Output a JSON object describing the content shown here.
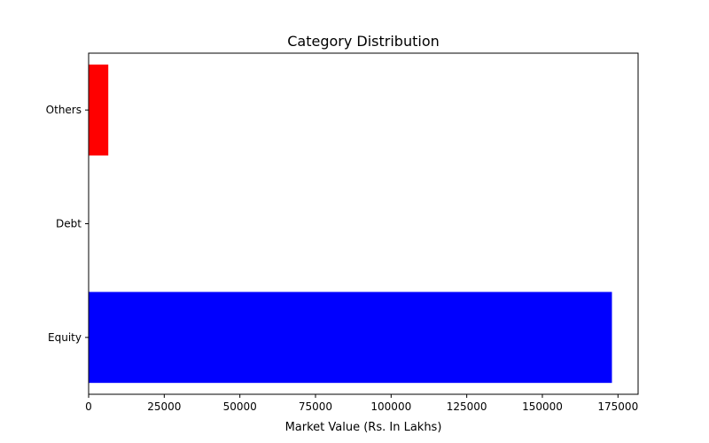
{
  "chart_data": {
    "type": "bar",
    "orientation": "horizontal",
    "title": "Category Distribution",
    "xlabel": "Market Value (Rs. In Lakhs)",
    "ylabel": "",
    "categories": [
      "Equity",
      "Debt",
      "Others"
    ],
    "values": [
      173000,
      0,
      6500
    ],
    "colors": [
      "#0000ff",
      "#00ff00",
      "#ff0000"
    ],
    "xlim": [
      0,
      181650
    ],
    "xticks": [
      0,
      25000,
      50000,
      75000,
      100000,
      125000,
      150000,
      175000
    ],
    "grid": false,
    "legend": "none"
  }
}
